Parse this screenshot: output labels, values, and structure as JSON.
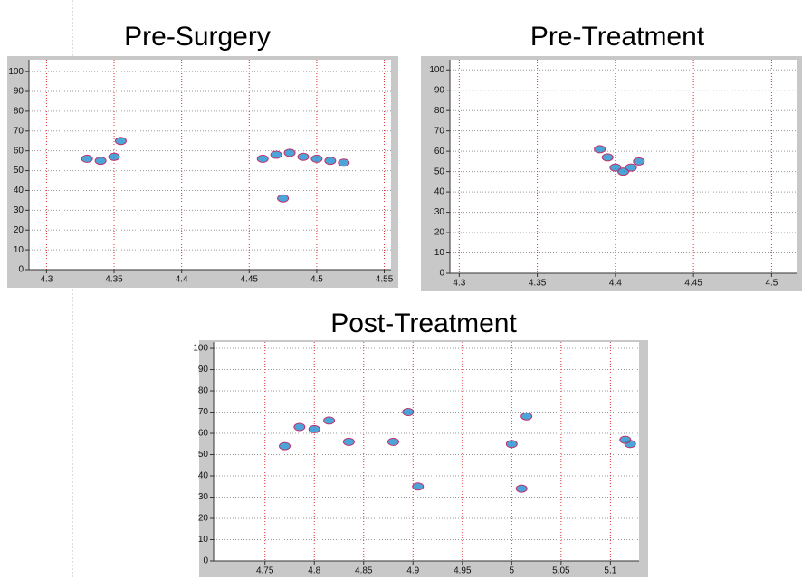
{
  "chart_data": [
    {
      "type": "scatter",
      "title": "Pre-Surgery",
      "color": "#1f8fd0",
      "grid": true,
      "x": [
        4.33,
        4.34,
        4.35,
        4.355,
        4.46,
        4.47,
        4.48,
        4.49,
        4.5,
        4.51,
        4.52,
        4.475
      ],
      "values": [
        56,
        55,
        57,
        65,
        56,
        58,
        59,
        57,
        56,
        55,
        54,
        36
      ],
      "xlim": [
        4.287,
        4.555
      ],
      "xticks": [
        4.3,
        4.35,
        4.4,
        4.45,
        4.5,
        4.55
      ],
      "ylim": [
        0,
        106
      ],
      "yticks": [
        0,
        10,
        20,
        30,
        40,
        50,
        60,
        70,
        80,
        90,
        100
      ]
    },
    {
      "type": "scatter",
      "title": "Pre-Treatment",
      "color": "#1f8fd0",
      "grid": true,
      "x": [
        4.395,
        4.39,
        4.4,
        4.405,
        4.41,
        4.415
      ],
      "values": [
        57,
        61,
        52,
        50,
        52,
        55
      ],
      "xlim": [
        4.294,
        4.516
      ],
      "xticks": [
        4.3,
        4.35,
        4.4,
        4.45,
        4.5
      ],
      "ylim": [
        0,
        105
      ],
      "yticks": [
        0,
        10,
        20,
        30,
        40,
        50,
        60,
        70,
        80,
        90,
        100
      ]
    },
    {
      "type": "scatter",
      "title": "Post-Treatment",
      "color": "#1f8fd0",
      "grid": true,
      "x": [
        4.77,
        4.785,
        4.8,
        4.815,
        4.835,
        4.88,
        4.895,
        4.905,
        5.0,
        5.01,
        5.015,
        5.12,
        5.115
      ],
      "values": [
        54,
        63,
        62,
        66,
        56,
        56,
        70,
        35,
        55,
        34,
        68,
        55,
        57
      ],
      "xlim": [
        4.698,
        5.129
      ],
      "xticks": [
        4.75,
        4.8,
        4.85,
        4.9,
        4.95,
        5,
        5.05,
        5.1
      ],
      "ylim": [
        0,
        103
      ],
      "yticks": [
        0,
        10,
        20,
        30,
        40,
        50,
        60,
        70,
        80,
        90,
        100
      ]
    }
  ]
}
